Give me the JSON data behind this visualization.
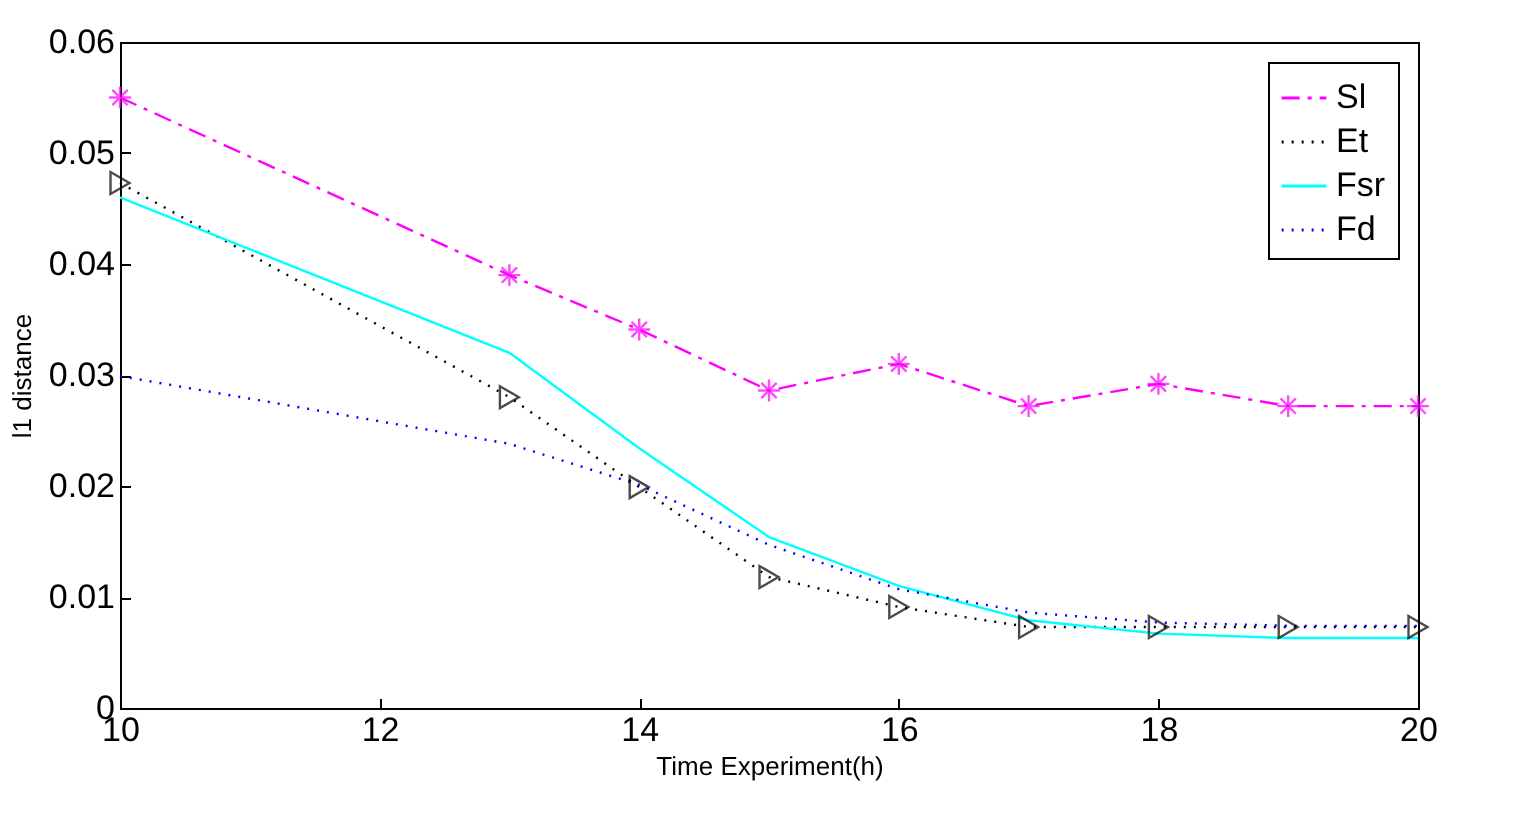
{
  "chart_data": {
    "type": "line",
    "xlabel": "Time Experiment(h)",
    "ylabel": "l1 distance",
    "x": [
      10,
      13,
      14,
      15,
      16,
      17,
      18,
      19,
      20
    ],
    "xlim": [
      10,
      20
    ],
    "xticks": [
      10,
      12,
      14,
      16,
      18,
      20
    ],
    "ylim": [
      0,
      0.06
    ],
    "yticks": [
      0,
      0.01,
      0.02,
      0.03,
      0.04,
      0.05,
      0.06
    ],
    "grid": false,
    "legend": "top right",
    "series": [
      {
        "name": "Sl",
        "color": "#ff00ff",
        "line_style": "dashed",
        "marker": "cross",
        "values": [
          0.055,
          0.039,
          0.0341,
          0.0286,
          0.031,
          0.0272,
          0.0292,
          0.0272,
          0.0272
        ]
      },
      {
        "name": "Et",
        "color": "#000000",
        "line_style": "dotted",
        "marker": "triangle",
        "values": [
          0.0473,
          0.028,
          0.0199,
          0.0118,
          0.0091,
          0.0073,
          0.0073,
          0.0073,
          0.0073
        ]
      },
      {
        "name": "Fsr",
        "color": "#00ffff",
        "line_style": "solid",
        "marker": "none",
        "values": [
          0.046,
          0.032,
          0.0234,
          0.0154,
          0.011,
          0.0079,
          0.0067,
          0.0063,
          0.0063
        ]
      },
      {
        "name": "Fd",
        "color": "#0000ff",
        "line_style": "dotted",
        "marker": "none",
        "values": [
          0.0299,
          0.0238,
          0.0201,
          0.0147,
          0.0107,
          0.0086,
          0.0077,
          0.0074,
          0.0074
        ]
      }
    ]
  }
}
